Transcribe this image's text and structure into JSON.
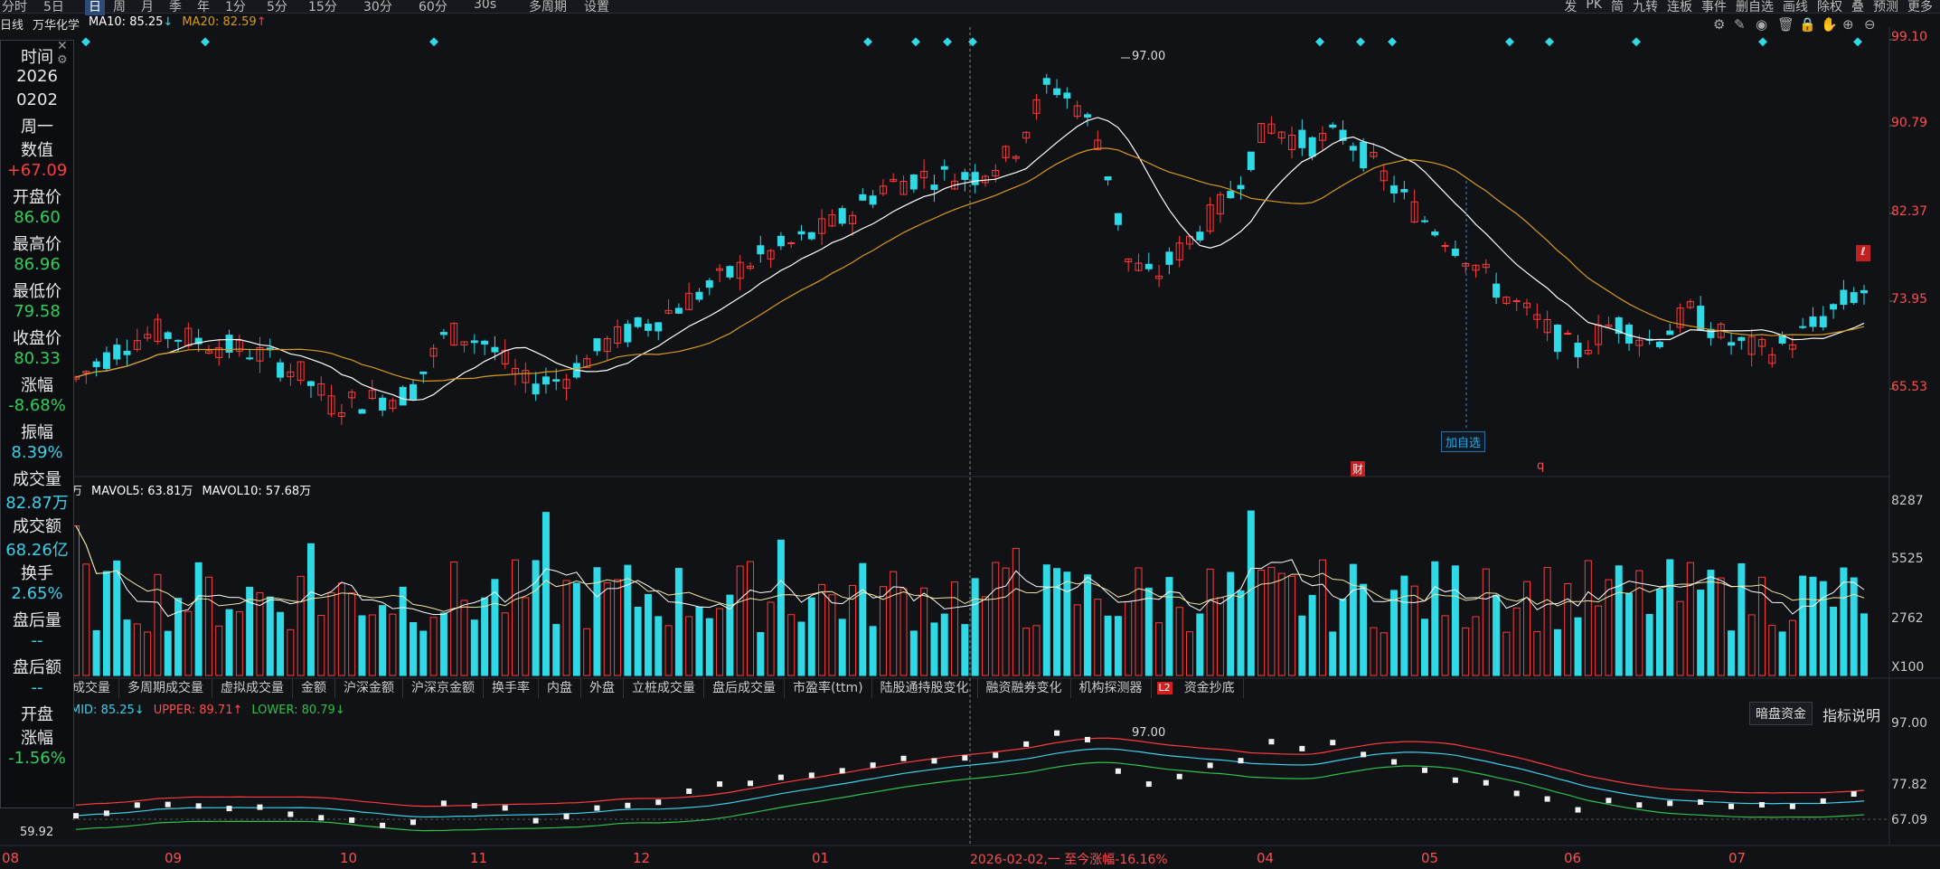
{
  "toolbar": {
    "left_items": [
      "分时",
      "5日",
      "日",
      "周",
      "月",
      "季",
      "年",
      "1分",
      "5分",
      "15分",
      "30分",
      "60分",
      "30s",
      "多周期",
      "设置"
    ],
    "active": "日",
    "right_items": [
      "发",
      "PK",
      "简",
      "九转",
      "连板",
      "事件",
      "删自选",
      "画线",
      "除权",
      "叠",
      "预测",
      "更多"
    ]
  },
  "info": {
    "period": "日线",
    "name": "万华化学",
    "ma10": "MA10: 85.25",
    "ma10_arrow": "↓",
    "ma20": "MA20: 82.59",
    "ma20_arrow": "↑"
  },
  "side": {
    "time_label": "时间",
    "year": "2026",
    "date": "0202",
    "weekday": "周一",
    "value_label": "数值",
    "value": "+67.09",
    "open_label": "开盘价",
    "open": "86.60",
    "high_label": "最高价",
    "high": "86.96",
    "low_label": "最低价",
    "low": "79.58",
    "close_label": "收盘价",
    "close": "80.33",
    "change_label": "涨幅",
    "change": "-8.68%",
    "amp_label": "振幅",
    "amp": "8.39%",
    "vol_label": "成交量",
    "vol": "82.87万",
    "amt_label": "成交额",
    "amt": "68.26亿",
    "turn_label": "换手",
    "turn": "2.65%",
    "after_vol_label": "盘后量",
    "after_vol": "--",
    "after_amt_label": "盘后额",
    "after_amt": "--",
    "open2_label": "开盘",
    "open2_label2": "涨幅",
    "open2": "-1.56%"
  },
  "price_axis": [
    "99.10",
    "90.79",
    "82.37",
    "73.95",
    "65.53"
  ],
  "vol_axis": [
    "8287",
    "5525",
    "2762",
    "X100"
  ],
  "boll_axis": [
    "97.00",
    "77.82",
    "67.09"
  ],
  "annotations": {
    "high_mark": "97.00",
    "low_mark": "59.92",
    "boll_high": "97.00",
    "add_watch": "加自选",
    "cai": "财",
    "q": "q"
  },
  "vol_legend": {
    "unit": "万",
    "mavol5": "MAVOL5: 63.81万",
    "mavol10": "MAVOL10: 57.68万"
  },
  "tabs": [
    "成交量",
    "多周期成交量",
    "虚拟成交量",
    "金额",
    "沪深金额",
    "沪深京金额",
    "换手率",
    "内盘",
    "外盘",
    "立桩成交量",
    "盘后成交量",
    "市盈率(ttm)",
    "陆股通持股变化",
    "融资融券变化",
    "机构探测器",
    "资金抄底"
  ],
  "tab_badge": "L2",
  "boll": {
    "mid": "MID: 85.25",
    "mid_arrow": "↓",
    "upper": "UPPER: 89.71",
    "upper_arrow": "↑",
    "lower": "LOWER: 80.79",
    "lower_arrow": "↓"
  },
  "buttons": {
    "dark_pool": "暗盘资金",
    "indicator_help": "指标说明"
  },
  "xaxis": [
    "08",
    "09",
    "10",
    "11",
    "12",
    "01",
    "04",
    "05",
    "06",
    "07"
  ],
  "cursor_label": "2026-02-02,一 至今涨幅-16.16%",
  "colors": {
    "up": "#ff3b3b",
    "down": "#2fd9e6",
    "ma10": "#ffffff",
    "ma20": "#d99a1e",
    "upper": "#ff3b3b",
    "mid": "#3ad0e8",
    "lower": "#2fc04a"
  }
}
